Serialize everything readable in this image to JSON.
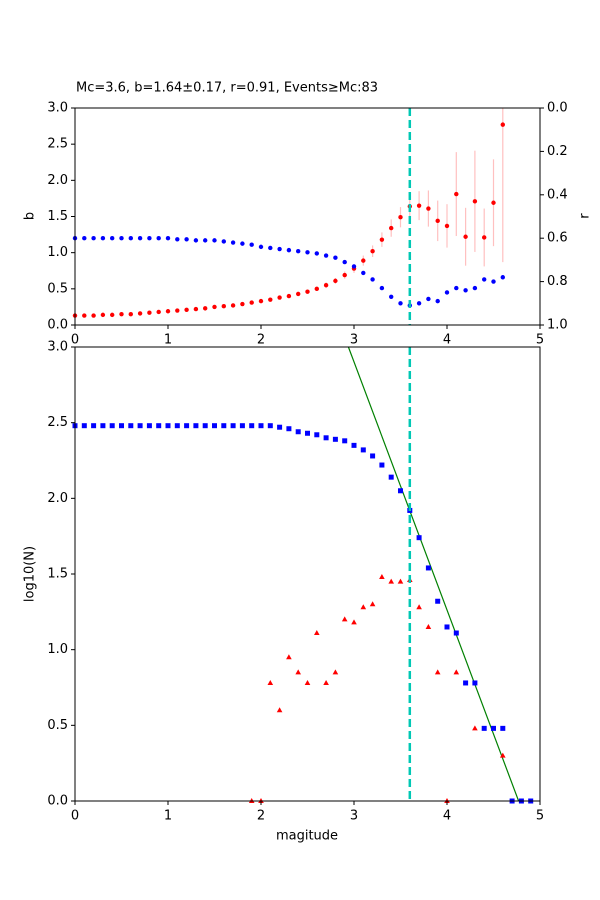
{
  "chart_data": [
    {
      "type": "scatter",
      "title": "Mc=3.6, b=1.64±0.17, r=0.91, Events≥Mc:83",
      "ylabel": "b",
      "y2label": "r",
      "xlim": [
        0,
        5
      ],
      "xticks": [
        0,
        1,
        2,
        3,
        4,
        5
      ],
      "ylim": [
        0,
        3
      ],
      "yticks": [
        {
          "value": 0,
          "label": "0.0"
        },
        {
          "value": 0.5,
          "label": "0.5"
        },
        {
          "value": 1,
          "label": "1.0"
        },
        {
          "value": 1.5,
          "label": "1.5"
        },
        {
          "value": 2,
          "label": "2.0"
        },
        {
          "value": 2.5,
          "label": "2.5"
        },
        {
          "value": 3,
          "label": "3.0"
        }
      ],
      "y2lim": [
        1,
        0
      ],
      "y2ticks": [
        {
          "value": 0,
          "label": "0.0"
        },
        {
          "value": 0.2,
          "label": "0.2"
        },
        {
          "value": 0.4,
          "label": "0.4"
        },
        {
          "value": 0.6,
          "label": "0.6"
        },
        {
          "value": 0.8,
          "label": "0.8"
        },
        {
          "value": 1,
          "label": "1.0"
        }
      ],
      "vline": {
        "x": 3.6,
        "color": "#00c8b4"
      },
      "series": [
        {
          "color": "#ff0000",
          "marker": "circle",
          "error_color": "#ffc0c0",
          "x": [
            0,
            0.1,
            0.2,
            0.3,
            0.4,
            0.5,
            0.6,
            0.7,
            0.8,
            0.9,
            1.0,
            1.1,
            1.2,
            1.3,
            1.4,
            1.5,
            1.6,
            1.7,
            1.8,
            1.9,
            2.0,
            2.1,
            2.2,
            2.3,
            2.4,
            2.5,
            2.6,
            2.7,
            2.8,
            2.9,
            3.0,
            3.1,
            3.2,
            3.3,
            3.4,
            3.5,
            3.6,
            3.7,
            3.8,
            3.9,
            4.0,
            4.1,
            4.2,
            4.3,
            4.4,
            4.5,
            4.6
          ],
          "values": [
            0.13,
            0.13,
            0.13,
            0.14,
            0.14,
            0.15,
            0.15,
            0.16,
            0.17,
            0.18,
            0.19,
            0.2,
            0.21,
            0.22,
            0.23,
            0.25,
            0.26,
            0.27,
            0.29,
            0.31,
            0.33,
            0.35,
            0.38,
            0.4,
            0.43,
            0.46,
            0.5,
            0.55,
            0.61,
            0.69,
            0.78,
            0.89,
            1.02,
            1.18,
            1.34,
            1.49,
            1.64,
            1.65,
            1.61,
            1.44,
            1.37,
            1.81,
            1.22,
            1.71,
            1.21,
            1.69,
            2.77
          ],
          "errors": [
            0.01,
            0.01,
            0.01,
            0.01,
            0.01,
            0.01,
            0.01,
            0.01,
            0.01,
            0.01,
            0.01,
            0.01,
            0.01,
            0.01,
            0.01,
            0.01,
            0.01,
            0.01,
            0.01,
            0.01,
            0.02,
            0.02,
            0.02,
            0.02,
            0.03,
            0.03,
            0.03,
            0.04,
            0.04,
            0.05,
            0.06,
            0.07,
            0.08,
            0.1,
            0.12,
            0.14,
            0.17,
            0.2,
            0.25,
            0.28,
            0.3,
            0.58,
            0.4,
            0.7,
            0.4,
            0.6,
            1.9
          ]
        },
        {
          "color": "#0000ff",
          "marker": "circle",
          "axis": "y2",
          "x": [
            0,
            0.1,
            0.2,
            0.3,
            0.4,
            0.5,
            0.6,
            0.7,
            0.8,
            0.9,
            1.0,
            1.1,
            1.2,
            1.3,
            1.4,
            1.5,
            1.6,
            1.7,
            1.8,
            1.9,
            2.0,
            2.1,
            2.2,
            2.3,
            2.4,
            2.5,
            2.6,
            2.7,
            2.8,
            2.9,
            3.0,
            3.1,
            3.2,
            3.3,
            3.4,
            3.5,
            3.6,
            3.7,
            3.8,
            3.9,
            4.0,
            4.1,
            4.2,
            4.3,
            4.4,
            4.5,
            4.6
          ],
          "values": [
            0.6,
            0.6,
            0.6,
            0.6,
            0.6,
            0.6,
            0.6,
            0.6,
            0.6,
            0.6,
            0.6,
            0.605,
            0.605,
            0.61,
            0.61,
            0.61,
            0.615,
            0.62,
            0.625,
            0.63,
            0.64,
            0.645,
            0.65,
            0.655,
            0.66,
            0.665,
            0.67,
            0.68,
            0.69,
            0.71,
            0.73,
            0.76,
            0.79,
            0.83,
            0.87,
            0.9,
            0.91,
            0.9,
            0.88,
            0.89,
            0.85,
            0.83,
            0.84,
            0.83,
            0.79,
            0.8,
            0.78
          ]
        }
      ]
    },
    {
      "type": "scatter",
      "xlabel": "magitude",
      "ylabel": "log10(N)",
      "xlim": [
        0,
        5
      ],
      "xticks": [
        0,
        1,
        2,
        3,
        4,
        5
      ],
      "ylim": [
        0,
        3
      ],
      "yticks": [
        {
          "value": 0,
          "label": "0.0"
        },
        {
          "value": 0.5,
          "label": "0.5"
        },
        {
          "value": 1,
          "label": "1.0"
        },
        {
          "value": 1.5,
          "label": "1.5"
        },
        {
          "value": 2,
          "label": "2.0"
        },
        {
          "value": 2.5,
          "label": "2.5"
        },
        {
          "value": 3,
          "label": "3.0"
        }
      ],
      "vline": {
        "x": 3.6,
        "color": "#00c8b4"
      },
      "fit": {
        "x": [
          2.94,
          4.77
        ],
        "y": [
          3,
          0
        ],
        "color": "#008000"
      },
      "series": [
        {
          "color": "#0000ff",
          "marker": "square",
          "x": [
            0,
            0.1,
            0.2,
            0.3,
            0.4,
            0.5,
            0.6,
            0.7,
            0.8,
            0.9,
            1.0,
            1.1,
            1.2,
            1.3,
            1.4,
            1.5,
            1.6,
            1.7,
            1.8,
            1.9,
            2.0,
            2.1,
            2.2,
            2.3,
            2.4,
            2.5,
            2.6,
            2.7,
            2.8,
            2.9,
            3.0,
            3.1,
            3.2,
            3.3,
            3.4,
            3.5,
            3.6,
            3.7,
            3.8,
            3.9,
            4.0,
            4.1,
            4.2,
            4.3,
            4.4,
            4.5,
            4.6,
            4.7,
            4.8,
            4.9
          ],
          "values": [
            2.48,
            2.48,
            2.48,
            2.48,
            2.48,
            2.48,
            2.48,
            2.48,
            2.48,
            2.48,
            2.48,
            2.48,
            2.48,
            2.48,
            2.48,
            2.48,
            2.48,
            2.48,
            2.48,
            2.48,
            2.48,
            2.48,
            2.47,
            2.46,
            2.44,
            2.43,
            2.42,
            2.4,
            2.39,
            2.38,
            2.35,
            2.32,
            2.28,
            2.22,
            2.14,
            2.05,
            1.92,
            1.74,
            1.54,
            1.32,
            1.15,
            1.11,
            0.78,
            0.78,
            0.48,
            0.48,
            0.48,
            0,
            0,
            0
          ]
        },
        {
          "color": "#ff0000",
          "marker": "triangle",
          "x": [
            1.9,
            2.0,
            2.1,
            2.2,
            2.3,
            2.4,
            2.5,
            2.6,
            2.7,
            2.8,
            2.9,
            3.0,
            3.1,
            3.2,
            3.3,
            3.4,
            3.5,
            3.6,
            3.7,
            3.8,
            3.9,
            4.0,
            4.1,
            4.3,
            4.6
          ],
          "values": [
            0,
            0,
            0.78,
            0.6,
            0.95,
            0.85,
            0.78,
            1.11,
            0.78,
            0.85,
            1.2,
            1.18,
            1.28,
            1.3,
            1.48,
            1.45,
            1.45,
            1.46,
            1.28,
            1.15,
            0.85,
            0,
            0.85,
            0.48,
            0.3
          ]
        }
      ]
    }
  ]
}
